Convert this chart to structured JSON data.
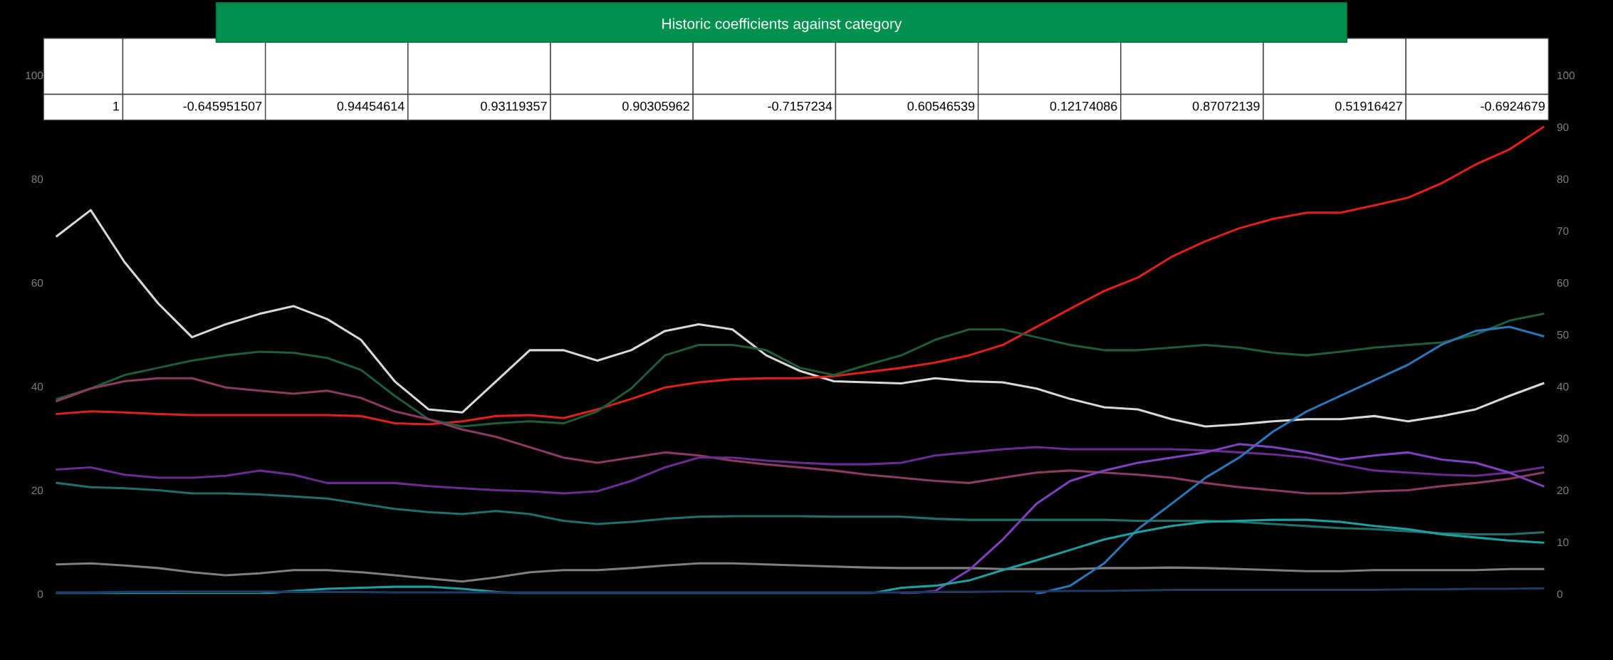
{
  "chart_data": {
    "type": "line",
    "title": "Historic coefficients against category",
    "annotations": [
      "1",
      "-0.645951507",
      "0.94454614",
      "0.93119357",
      "0.90305962",
      "-0.7157234",
      "0.60546539",
      "0.12174086",
      "0.87072139",
      "0.51916427",
      "-0.6924679"
    ],
    "categories": [
      null,
      null,
      null,
      null,
      null,
      null,
      null,
      null,
      null,
      null,
      null,
      null,
      null,
      null,
      null,
      null,
      null,
      null,
      null,
      null,
      null,
      null,
      null,
      null,
      null,
      null,
      null,
      null,
      null,
      null,
      null,
      null,
      null,
      null,
      null,
      null,
      null,
      null,
      null,
      null,
      null,
      null,
      null,
      null,
      null
    ],
    "ylim": [
      0,
      100
    ],
    "yticks": [
      0,
      20,
      40,
      60,
      80,
      100
    ],
    "y2lim": [
      0,
      100
    ],
    "y2ticks": [
      0,
      10,
      20,
      30,
      40,
      50,
      60,
      70,
      80,
      90,
      100
    ],
    "tick_labels": "y",
    "grid": false,
    "legend": false,
    "marker": "none",
    "line_style": "solid",
    "series": [
      {
        "color": "#d9d9d9",
        "values": [
          69,
          74,
          64,
          56,
          49.5,
          52,
          54,
          55.5,
          53,
          49,
          41,
          35.6,
          35,
          41,
          47,
          47,
          45,
          47,
          50.7,
          52,
          51,
          46,
          43,
          41,
          40.8,
          40.6,
          41.6,
          41,
          40.8,
          39.6,
          37.6,
          36,
          35.6,
          33.7,
          32.3,
          32.7,
          33.3,
          33.7,
          33.7,
          34.3,
          33.3,
          34.3,
          35.6,
          38.2,
          40.6
        ]
      },
      {
        "color": "#e0201b",
        "values": [
          34.7,
          35.2,
          35,
          34.7,
          34.5,
          34.5,
          34.5,
          34.5,
          34.5,
          34.3,
          32.9,
          32.7,
          33.3,
          34.3,
          34.5,
          33.9,
          35.6,
          37.6,
          39.8,
          40.8,
          41.4,
          41.6,
          41.6,
          42,
          42.8,
          43.6,
          44.6,
          46,
          48,
          51.5,
          55,
          58.4,
          61,
          65,
          68,
          70.5,
          72.3,
          73.5,
          73.5,
          74.9,
          76.4,
          79.2,
          82.8,
          85.7,
          90
        ]
      },
      {
        "color": "#1e5c3a",
        "values": [
          37.6,
          39.6,
          42.2,
          43.6,
          45,
          46,
          46.7,
          46.5,
          45.5,
          43.2,
          38.2,
          33.7,
          32.3,
          32.9,
          33.3,
          32.9,
          35.2,
          39.6,
          46,
          48,
          48,
          47,
          43.6,
          42.2,
          44.2,
          46,
          49,
          51,
          51,
          49.5,
          48,
          47,
          47,
          47.5,
          48,
          47.5,
          46.5,
          46,
          46.7,
          47.5,
          48,
          48.5,
          50,
          52.7,
          54
        ]
      },
      {
        "color": "#8b3a62",
        "values": [
          37.2,
          39.6,
          41,
          41.6,
          41.6,
          39.8,
          39.2,
          38.6,
          39.2,
          37.8,
          35.2,
          33.7,
          31.7,
          30.3,
          28.3,
          26.3,
          25.3,
          26.3,
          27.3,
          26.7,
          25.7,
          25,
          24.4,
          23.8,
          23,
          22.4,
          21.8,
          21.4,
          22.4,
          23.4,
          23.8,
          23.4,
          23,
          22.4,
          21.4,
          20.6,
          20,
          19.4,
          19.4,
          19.8,
          20,
          20.8,
          21.4,
          22.2,
          23.4
        ]
      },
      {
        "color": "#6a2c91",
        "values": [
          24,
          24.4,
          23,
          22.4,
          22.4,
          22.8,
          23.8,
          23,
          21.4,
          21.4,
          21.4,
          20.8,
          20.4,
          20,
          19.8,
          19.4,
          19.8,
          21.8,
          24.4,
          26.3,
          26.3,
          25.7,
          25.3,
          25,
          25,
          25.3,
          26.7,
          27.3,
          27.9,
          28.3,
          27.9,
          27.9,
          27.9,
          27.9,
          27.7,
          27.3,
          26.9,
          26.3,
          25,
          23.8,
          23.4,
          23,
          22.8,
          23.4,
          24.4
        ]
      },
      {
        "color": "#1f6f6b",
        "values": [
          21.4,
          20.6,
          20.4,
          20,
          19.4,
          19.4,
          19.2,
          18.8,
          18.4,
          17.4,
          16.4,
          15.8,
          15.4,
          16,
          15.4,
          14.1,
          13.5,
          13.9,
          14.5,
          14.9,
          15,
          15,
          15,
          14.9,
          14.9,
          14.9,
          14.5,
          14.3,
          14.3,
          14.3,
          14.3,
          14.3,
          14.1,
          14.1,
          14.1,
          13.9,
          13.5,
          13.1,
          12.7,
          12.5,
          12.1,
          11.7,
          11.5,
          11.5,
          11.9
        ]
      },
      {
        "color": "#7f7f7f",
        "values": [
          5.7,
          5.9,
          5.5,
          5,
          4.2,
          3.6,
          4,
          4.6,
          4.6,
          4.2,
          3.6,
          3,
          2.4,
          3.2,
          4.2,
          4.6,
          4.6,
          5,
          5.5,
          5.9,
          5.9,
          5.7,
          5.5,
          5.3,
          5.1,
          5,
          5,
          5,
          4.8,
          4.8,
          4.8,
          5,
          5,
          5.1,
          5,
          4.8,
          4.6,
          4.4,
          4.4,
          4.6,
          4.6,
          4.6,
          4.6,
          4.8,
          4.8
        ]
      },
      {
        "color": "#2e75b6",
        "values": [
          null,
          null,
          null,
          null,
          null,
          null,
          null,
          null,
          null,
          null,
          null,
          null,
          null,
          null,
          null,
          null,
          null,
          null,
          null,
          null,
          null,
          null,
          null,
          null,
          null,
          null,
          null,
          null,
          null,
          0,
          1.6,
          5.9,
          12.5,
          17.4,
          22.4,
          26.3,
          31.3,
          35.2,
          38.2,
          41.2,
          44.2,
          48.1,
          50.7,
          51.5,
          49.7
        ]
      },
      {
        "color": "#8040c0",
        "values": [
          null,
          null,
          null,
          null,
          null,
          null,
          null,
          null,
          null,
          null,
          null,
          null,
          null,
          null,
          null,
          null,
          null,
          null,
          null,
          null,
          null,
          null,
          null,
          null,
          null,
          0,
          0.6,
          4.6,
          10.5,
          17.4,
          21.8,
          23.8,
          25.3,
          26.3,
          27.3,
          28.9,
          28.3,
          27.3,
          25.9,
          26.7,
          27.3,
          25.9,
          25.3,
          23.4,
          20.8
        ]
      },
      {
        "color": "#1fa0a0",
        "values": [
          0,
          0,
          0,
          0,
          0,
          0,
          0,
          0.6,
          1,
          1.2,
          1.4,
          1.4,
          1,
          0.4,
          0,
          0,
          0,
          0,
          0,
          0,
          0,
          0,
          0,
          0,
          0,
          1.2,
          1.6,
          2.6,
          4.6,
          6.5,
          8.5,
          10.5,
          11.9,
          13.1,
          13.9,
          14.1,
          14.3,
          14.3,
          13.9,
          13.1,
          12.5,
          11.5,
          10.9,
          10.3,
          9.9
        ]
      },
      {
        "color": "#1f3864",
        "values": [
          0.3,
          0.3,
          0.4,
          0.4,
          0.5,
          0.5,
          0.5,
          0.4,
          0.4,
          0.4,
          0.3,
          0.3,
          0.3,
          0.3,
          0.3,
          0.3,
          0.3,
          0.3,
          0.3,
          0.3,
          0.3,
          0.3,
          0.3,
          0.3,
          0.3,
          0.3,
          0.4,
          0.4,
          0.5,
          0.5,
          0.6,
          0.6,
          0.7,
          0.8,
          0.8,
          0.8,
          0.8,
          0.8,
          0.8,
          0.8,
          0.9,
          0.9,
          1,
          1,
          1.1
        ]
      }
    ]
  }
}
